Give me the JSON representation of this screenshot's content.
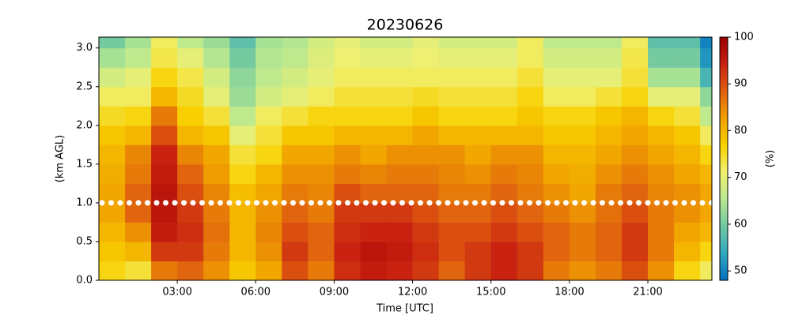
{
  "chart_data": {
    "type": "heatmap",
    "title": "20230626",
    "xlabel": "Time [UTC]",
    "ylabel": "(km AGL)",
    "colorbar_label": "(%)",
    "x_bins": [
      0,
      1,
      2,
      3,
      4,
      5,
      6,
      7,
      8,
      9,
      10,
      11,
      12,
      13,
      14,
      15,
      16,
      17,
      18,
      19,
      20,
      21,
      22,
      23,
      23.45
    ],
    "y_bins": [
      0,
      0.25,
      0.5,
      0.75,
      1,
      1.25,
      1.5,
      1.75,
      2,
      2.25,
      2.5,
      2.75,
      3,
      3.14
    ],
    "z": [
      [
        76,
        78,
        80,
        82,
        82,
        81,
        80,
        78,
        75,
        72,
        68,
        64,
        60
      ],
      [
        74,
        80,
        84,
        88,
        88,
        86,
        85,
        80,
        76,
        72,
        70,
        66,
        64
      ],
      [
        86,
        92,
        95,
        96,
        96,
        95,
        94,
        90,
        86,
        80,
        76,
        73,
        72
      ],
      [
        88,
        92,
        93,
        92,
        90,
        88,
        85,
        80,
        77,
        75,
        73,
        70,
        66
      ],
      [
        84,
        86,
        87,
        86,
        85,
        83,
        82,
        78,
        74,
        70,
        68,
        65,
        63
      ],
      [
        78,
        80,
        80,
        80,
        79,
        76,
        74,
        70,
        66,
        63,
        62,
        60,
        58
      ],
      [
        82,
        84,
        85,
        84,
        82,
        80,
        76,
        74,
        72,
        68,
        66,
        65,
        64
      ],
      [
        90,
        92,
        90,
        88,
        86,
        84,
        82,
        78,
        74,
        70,
        68,
        66,
        65
      ],
      [
        86,
        88,
        88,
        86,
        85,
        84,
        82,
        78,
        76,
        72,
        70,
        69,
        68
      ],
      [
        93,
        94,
        93,
        92,
        90,
        86,
        84,
        80,
        76,
        74,
        72,
        71,
        70
      ],
      [
        95,
        96,
        94,
        92,
        88,
        85,
        82,
        80,
        76,
        74,
        72,
        70,
        68
      ],
      [
        94,
        95,
        94,
        92,
        88,
        86,
        84,
        80,
        76,
        74,
        72,
        70,
        68
      ],
      [
        92,
        93,
        92,
        90,
        88,
        86,
        84,
        82,
        78,
        75,
        72,
        71,
        70
      ],
      [
        88,
        90,
        90,
        88,
        86,
        85,
        84,
        80,
        76,
        74,
        72,
        70,
        68
      ],
      [
        92,
        92,
        90,
        88,
        86,
        84,
        82,
        80,
        76,
        74,
        72,
        70,
        68
      ],
      [
        94,
        94,
        92,
        90,
        88,
        86,
        84,
        80,
        76,
        74,
        72,
        70,
        68
      ],
      [
        92,
        92,
        90,
        88,
        86,
        85,
        84,
        80,
        78,
        76,
        74,
        72,
        72
      ],
      [
        86,
        88,
        88,
        86,
        84,
        82,
        80,
        78,
        76,
        72,
        70,
        68,
        66
      ],
      [
        84,
        86,
        86,
        84,
        82,
        81,
        80,
        78,
        76,
        72,
        70,
        68,
        66
      ],
      [
        86,
        88,
        88,
        87,
        86,
        84,
        82,
        80,
        78,
        74,
        70,
        68,
        66
      ],
      [
        90,
        92,
        92,
        90,
        88,
        86,
        84,
        82,
        80,
        76,
        74,
        73,
        72
      ],
      [
        84,
        86,
        86,
        86,
        85,
        84,
        82,
        80,
        76,
        70,
        64,
        60,
        58
      ],
      [
        76,
        80,
        82,
        84,
        84,
        82,
        80,
        78,
        74,
        70,
        64,
        60,
        58
      ],
      [
        72,
        76,
        80,
        82,
        82,
        80,
        76,
        72,
        66,
        62,
        56,
        52,
        50
      ]
    ],
    "xlim": [
      0,
      23.45
    ],
    "ylim": [
      0,
      3.14
    ],
    "xticks": [
      {
        "value": 3,
        "label": "03:00"
      },
      {
        "value": 6,
        "label": "06:00"
      },
      {
        "value": 9,
        "label": "09:00"
      },
      {
        "value": 12,
        "label": "12:00"
      },
      {
        "value": 15,
        "label": "15:00"
      },
      {
        "value": 18,
        "label": "18:00"
      },
      {
        "value": 21,
        "label": "21:00"
      }
    ],
    "yticks": [
      {
        "value": 0,
        "label": "0.0"
      },
      0.5,
      {
        "value": 1,
        "label": "1.0"
      },
      1.5,
      {
        "value": 2,
        "label": "2.0"
      },
      2.5,
      {
        "value": 3,
        "label": "3.0"
      }
    ],
    "clim": [
      48,
      100
    ],
    "cticks": [
      50,
      60,
      70,
      80,
      90,
      100
    ],
    "colormap": [
      "#0070c0",
      "#30a8c0",
      "#70c8a0",
      "#b8e890",
      "#f0f070",
      "#f8d000",
      "#f0a000",
      "#e06010",
      "#c82010",
      "#9a0000"
    ],
    "reference_line": {
      "y": 1.0,
      "color": "#ffffff"
    }
  }
}
